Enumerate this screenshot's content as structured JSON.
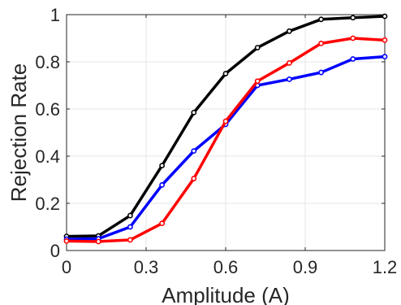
{
  "chart_data": {
    "type": "line",
    "xlabel": "Amplitude (A)",
    "ylabel": "Rejection Rate",
    "xlim": [
      0,
      1.2
    ],
    "ylim": [
      0,
      1
    ],
    "xticks": [
      0,
      0.3,
      0.6,
      0.9,
      1.2
    ],
    "xtick_labels": [
      "0",
      "0.3",
      "0.6",
      "0.9",
      "1.2"
    ],
    "yticks": [
      0,
      0.2,
      0.4,
      0.6,
      0.8,
      1
    ],
    "ytick_labels": [
      "0",
      "0.2",
      "0.4",
      "0.6",
      "0.8",
      "1"
    ],
    "grid": true,
    "x": [
      0,
      0.12,
      0.24,
      0.36,
      0.48,
      0.6,
      0.72,
      0.84,
      0.96,
      1.08,
      1.2
    ],
    "series": [
      {
        "color": "#000000",
        "values": [
          0.06,
          0.062,
          0.148,
          0.36,
          0.585,
          0.75,
          0.86,
          0.93,
          0.98,
          0.987,
          0.993
        ]
      },
      {
        "color": "#0000ff",
        "values": [
          0.048,
          0.05,
          0.1,
          0.278,
          0.422,
          0.535,
          0.7,
          0.726,
          0.755,
          0.812,
          0.822
        ]
      },
      {
        "color": "#ff0000",
        "values": [
          0.04,
          0.038,
          0.045,
          0.115,
          0.305,
          0.548,
          0.718,
          0.795,
          0.878,
          0.9,
          0.892
        ]
      }
    ]
  }
}
